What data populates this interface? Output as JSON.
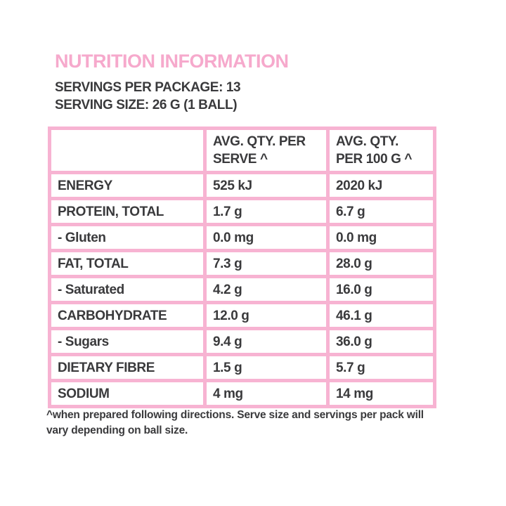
{
  "title": "NUTRITION INFORMATION",
  "subtitle": {
    "servings_per_package": "SERVINGS PER PACKAGE: 13",
    "serving_size": "SERVING SIZE: 26 G (1 BALL)"
  },
  "table": {
    "columns": [
      "",
      "AVG. QTY. PER SERVE ^",
      "AVG. QTY. PER 100 G ^"
    ],
    "rows": [
      {
        "label": "ENERGY",
        "per_serve": "525 kJ",
        "per_100g": "2020 kJ"
      },
      {
        "label": "PROTEIN, TOTAL",
        "per_serve": "1.7 g",
        "per_100g": "6.7 g"
      },
      {
        "label": "- Gluten",
        "per_serve": "0.0 mg",
        "per_100g": "0.0 mg"
      },
      {
        "label": "FAT, TOTAL",
        "per_serve": "7.3 g",
        "per_100g": "28.0 g"
      },
      {
        "label": "- Saturated",
        "per_serve": "4.2 g",
        "per_100g": "16.0 g"
      },
      {
        "label": "CARBOHYDRATE",
        "per_serve": "12.0 g",
        "per_100g": "46.1 g"
      },
      {
        "label": "- Sugars",
        "per_serve": "9.4 g",
        "per_100g": "36.0 g"
      },
      {
        "label": "DIETARY FIBRE",
        "per_serve": "1.5 g",
        "per_100g": "5.7 g"
      },
      {
        "label": "SODIUM",
        "per_serve": "4 mg",
        "per_100g": "14 mg"
      }
    ]
  },
  "footnote": "^when prepared following directions. Serve size and servings per pack will vary depending on ball size.",
  "colors": {
    "accent_pink": "#f6a9cc",
    "border_pink": "#f7b3d2",
    "text_dark": "#3a3a3c",
    "background": "#ffffff"
  }
}
